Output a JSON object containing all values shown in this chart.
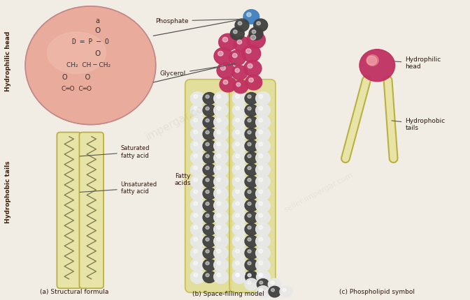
{
  "background_color": "#f2ede4",
  "panels": [
    "(a) Structural formula",
    "(b) Space-filling model",
    "(c) Phospholipid symbol"
  ],
  "labels": {
    "hydrophilic_head": "Hydrophilic head",
    "hydrophobic_tails": "Hydrophobic tails",
    "phosphate": "Phosphate",
    "glycerol": "Glycerol",
    "saturated": "Saturated\nfatty acid",
    "unsaturated": "Unsaturated\nfatty acid",
    "fatty_acids": "Fatty\nacids",
    "hydrophilic_head_c": "Hydrophilic\nhead",
    "hydrophobic_tails_c": "Hydrophobic\ntails"
  },
  "colors": {
    "head_pink": "#e8a090",
    "head_pink_light": "#f0c0b0",
    "tail_yellow_border": "#b8b040",
    "tail_light": "#ddd88a",
    "tail_fill": "#e8e4a8",
    "background": "#f2ede4",
    "text_dark": "#2c1810",
    "atom_white": "#e8e8e8",
    "atom_dark": "#404040",
    "atom_red": "#c03060",
    "atom_red2": "#d06070",
    "atom_blue": "#4080c0",
    "line_color": "#444444",
    "side_label": "#3a2010"
  },
  "figsize": [
    6.72,
    4.3
  ],
  "dpi": 100
}
